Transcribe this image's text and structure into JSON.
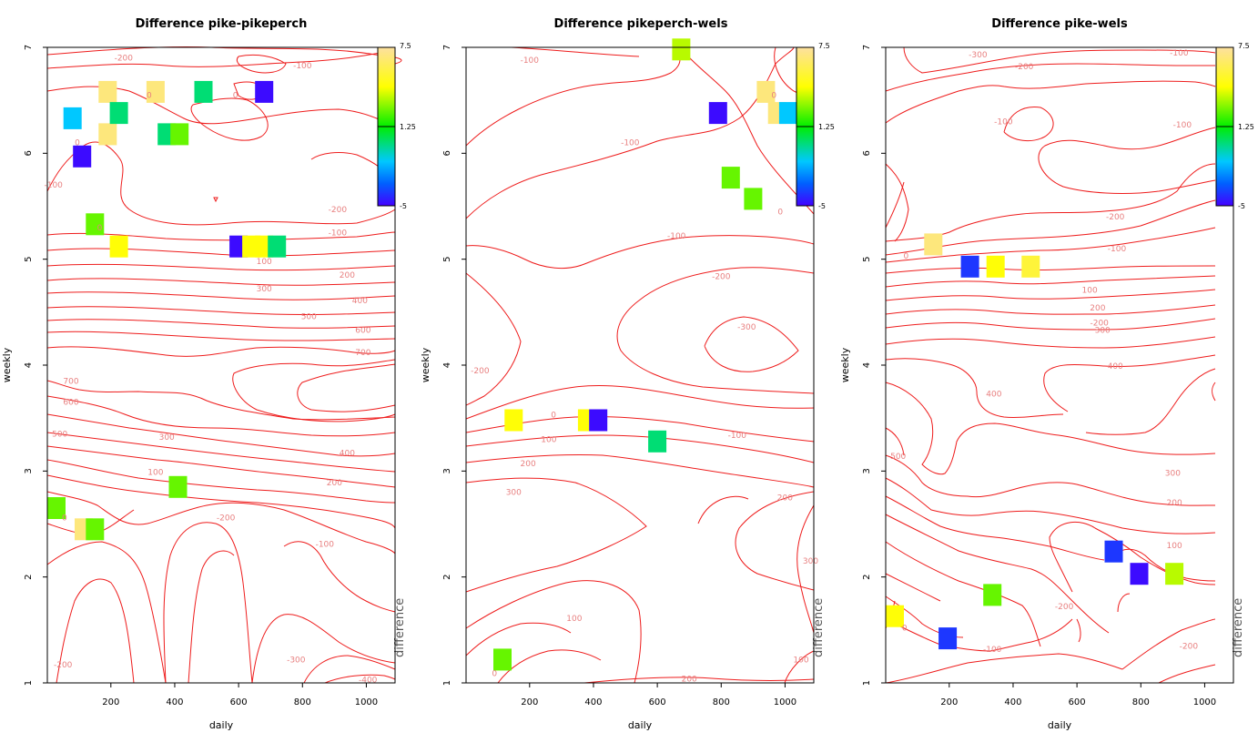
{
  "chart_data": [
    {
      "type": "heatmap",
      "title": "Difference pike-pikeperch",
      "xlabel": "daily",
      "ylabel": "weekly",
      "xlim": [
        1,
        1090
      ],
      "ylim": [
        1,
        7
      ],
      "xticks": [
        200,
        400,
        600,
        800,
        1000
      ],
      "yticks": [
        1,
        2,
        3,
        4,
        5,
        6,
        7
      ],
      "colorbar": {
        "label": "difference",
        "ticks": [
          7.5,
          1.25,
          -5
        ],
        "range": [
          -5,
          7.5
        ]
      },
      "cells": [
        {
          "x": 80,
          "y": 6.33,
          "value": -1.5
        },
        {
          "x": 110,
          "y": 5.97,
          "value": -4.8
        },
        {
          "x": 190,
          "y": 6.58,
          "value": 6.8
        },
        {
          "x": 190,
          "y": 6.18,
          "value": 6.8
        },
        {
          "x": 225,
          "y": 6.38,
          "value": 0.0
        },
        {
          "x": 340,
          "y": 6.58,
          "value": 6.8
        },
        {
          "x": 375,
          "y": 6.18,
          "value": 0.0
        },
        {
          "x": 415,
          "y": 6.18,
          "value": 2.5
        },
        {
          "x": 490,
          "y": 6.58,
          "value": 0.0
        },
        {
          "x": 680,
          "y": 6.58,
          "value": -4.8
        },
        {
          "x": 150,
          "y": 5.33,
          "value": 2.5
        },
        {
          "x": 225,
          "y": 5.12,
          "value": 4.5
        },
        {
          "x": 600,
          "y": 5.12,
          "value": -4.8
        },
        {
          "x": 640,
          "y": 5.12,
          "value": 4.5
        },
        {
          "x": 680,
          "y": 5.12,
          "value": 4.5
        },
        {
          "x": 720,
          "y": 5.12,
          "value": 0.0
        },
        {
          "x": 410,
          "y": 2.85,
          "value": 2.5
        },
        {
          "x": 5,
          "y": 2.65,
          "value": 2.5
        },
        {
          "x": 115,
          "y": 2.45,
          "value": 6.8
        },
        {
          "x": 150,
          "y": 2.45,
          "value": 2.5
        }
      ],
      "contour_labels": [
        {
          "text": "-200",
          "x": 240,
          "y": 6.9
        },
        {
          "text": "-100",
          "x": 800,
          "y": 6.83
        },
        {
          "text": "0",
          "x": 320,
          "y": 6.55
        },
        {
          "text": "0",
          "x": 590,
          "y": 6.55
        },
        {
          "text": "0",
          "x": 95,
          "y": 6.1
        },
        {
          "text": "-100",
          "x": 20,
          "y": 5.7
        },
        {
          "text": "0",
          "x": 165,
          "y": 5.3
        },
        {
          "text": "-200",
          "x": 910,
          "y": 5.47
        },
        {
          "text": "-100",
          "x": 910,
          "y": 5.25
        },
        {
          "text": "100",
          "x": 680,
          "y": 4.98
        },
        {
          "text": "200",
          "x": 940,
          "y": 4.85
        },
        {
          "text": "300",
          "x": 680,
          "y": 4.72
        },
        {
          "text": "400",
          "x": 980,
          "y": 4.61
        },
        {
          "text": "500",
          "x": 820,
          "y": 4.46
        },
        {
          "text": "600",
          "x": 990,
          "y": 4.33
        },
        {
          "text": "700",
          "x": 990,
          "y": 4.12
        },
        {
          "text": "700",
          "x": 75,
          "y": 3.85
        },
        {
          "text": "600",
          "x": 75,
          "y": 3.65
        },
        {
          "text": "500",
          "x": 40,
          "y": 3.35
        },
        {
          "text": "300",
          "x": 375,
          "y": 3.32
        },
        {
          "text": "400",
          "x": 940,
          "y": 3.17
        },
        {
          "text": "100",
          "x": 340,
          "y": 2.99
        },
        {
          "text": "200",
          "x": 900,
          "y": 2.89
        },
        {
          "text": "0",
          "x": 55,
          "y": 2.56
        },
        {
          "text": "-200",
          "x": 560,
          "y": 2.56
        },
        {
          "text": "-100",
          "x": 870,
          "y": 2.31
        },
        {
          "text": "-200",
          "x": 50,
          "y": 1.17
        },
        {
          "text": "-300",
          "x": 780,
          "y": 1.22
        },
        {
          "text": "-400",
          "x": 1005,
          "y": 1.03
        }
      ]
    },
    {
      "type": "heatmap",
      "title": "Difference pikeperch-wels",
      "xlabel": "daily",
      "ylabel": "weekly",
      "xlim": [
        1,
        1090
      ],
      "ylim": [
        1,
        7
      ],
      "xticks": [
        200,
        400,
        600,
        800,
        1000
      ],
      "yticks": [
        1,
        2,
        3,
        4,
        5,
        6,
        7
      ],
      "colorbar": {
        "label": "difference",
        "ticks": [
          7.5,
          1.25,
          -5
        ],
        "range": [
          -5,
          7.5
        ]
      },
      "cells": [
        {
          "x": 675,
          "y": 6.98,
          "value": 3.5
        },
        {
          "x": 940,
          "y": 6.58,
          "value": 6.8
        },
        {
          "x": 975,
          "y": 6.38,
          "value": 6.8
        },
        {
          "x": 1010,
          "y": 6.38,
          "value": -1.5
        },
        {
          "x": 790,
          "y": 6.38,
          "value": -4.8
        },
        {
          "x": 830,
          "y": 5.77,
          "value": 2.5
        },
        {
          "x": 900,
          "y": 5.57,
          "value": 2.5
        },
        {
          "x": 150,
          "y": 3.48,
          "value": 4.5
        },
        {
          "x": 380,
          "y": 3.48,
          "value": 4.5
        },
        {
          "x": 415,
          "y": 3.48,
          "value": -4.8
        },
        {
          "x": 600,
          "y": 3.28,
          "value": 0.0
        },
        {
          "x": 115,
          "y": 1.22,
          "value": 2.5
        }
      ],
      "contour_labels": [
        {
          "text": "-100",
          "x": 200,
          "y": 6.88
        },
        {
          "text": "0",
          "x": 965,
          "y": 6.55
        },
        {
          "text": "-100",
          "x": 515,
          "y": 6.1
        },
        {
          "text": "0",
          "x": 985,
          "y": 5.45
        },
        {
          "text": "-100",
          "x": 660,
          "y": 5.22
        },
        {
          "text": "-200",
          "x": 800,
          "y": 4.84
        },
        {
          "text": "-300",
          "x": 880,
          "y": 4.36
        },
        {
          "text": "-200",
          "x": 45,
          "y": 3.95
        },
        {
          "text": "0",
          "x": 275,
          "y": 3.53
        },
        {
          "text": "-100",
          "x": 850,
          "y": 3.34
        },
        {
          "text": "100",
          "x": 260,
          "y": 3.3
        },
        {
          "text": "200",
          "x": 195,
          "y": 3.07
        },
        {
          "text": "300",
          "x": 150,
          "y": 2.8
        },
        {
          "text": "200",
          "x": 1000,
          "y": 2.75
        },
        {
          "text": "300",
          "x": 1080,
          "y": 2.15
        },
        {
          "text": "100",
          "x": 340,
          "y": 1.61
        },
        {
          "text": "100",
          "x": 1050,
          "y": 1.22
        },
        {
          "text": "200",
          "x": 700,
          "y": 1.04
        },
        {
          "text": "0",
          "x": 90,
          "y": 1.09
        }
      ]
    },
    {
      "type": "heatmap",
      "title": "Difference pike-wels",
      "xlabel": "daily",
      "ylabel": "weekly",
      "xlim": [
        1,
        1090
      ],
      "ylim": [
        1,
        7
      ],
      "xticks": [
        200,
        400,
        600,
        800,
        1000
      ],
      "yticks": [
        1,
        2,
        3,
        4,
        5,
        6,
        7
      ],
      "colorbar": {
        "label": "difference",
        "ticks": [
          7.5,
          1.25,
          -5
        ],
        "range": [
          -5,
          7.5
        ]
      },
      "cells": [
        {
          "x": 150,
          "y": 5.14,
          "value": 6.8
        },
        {
          "x": 265,
          "y": 4.93,
          "value": -4.0
        },
        {
          "x": 345,
          "y": 4.93,
          "value": 4.5
        },
        {
          "x": 455,
          "y": 4.93,
          "value": 5.5
        },
        {
          "x": 715,
          "y": 2.24,
          "value": -4.0
        },
        {
          "x": 795,
          "y": 2.03,
          "value": -4.8
        },
        {
          "x": 905,
          "y": 2.03,
          "value": 3.5
        },
        {
          "x": 335,
          "y": 1.83,
          "value": 2.5
        },
        {
          "x": 5,
          "y": 1.63,
          "value": 4.5
        },
        {
          "x": 195,
          "y": 1.42,
          "value": -4.0
        }
      ],
      "contour_labels": [
        {
          "text": "-300",
          "x": 290,
          "y": 6.93
        },
        {
          "text": "-200",
          "x": 435,
          "y": 6.82
        },
        {
          "text": "-100",
          "x": 920,
          "y": 6.95
        },
        {
          "text": "-100",
          "x": 370,
          "y": 6.3
        },
        {
          "text": "-100",
          "x": 930,
          "y": 6.27
        },
        {
          "text": "-200",
          "x": 670,
          "y": 4.4
        },
        {
          "text": "-200",
          "x": 720,
          "y": 5.4
        },
        {
          "text": "-100",
          "x": 725,
          "y": 5.1
        },
        {
          "text": "0",
          "x": 65,
          "y": 5.03
        },
        {
          "text": "100",
          "x": 640,
          "y": 4.71
        },
        {
          "text": "200",
          "x": 665,
          "y": 4.54
        },
        {
          "text": "300",
          "x": 680,
          "y": 4.33
        },
        {
          "text": "400",
          "x": 720,
          "y": 3.99
        },
        {
          "text": "400",
          "x": 340,
          "y": 3.73
        },
        {
          "text": "500",
          "x": 40,
          "y": 3.14
        },
        {
          "text": "300",
          "x": 900,
          "y": 2.98
        },
        {
          "text": "200",
          "x": 905,
          "y": 2.7
        },
        {
          "text": "100",
          "x": 905,
          "y": 2.3
        },
        {
          "text": "-200",
          "x": 560,
          "y": 1.72
        },
        {
          "text": "0",
          "x": 60,
          "y": 1.52
        },
        {
          "text": "-100",
          "x": 335,
          "y": 1.32
        },
        {
          "text": "-200",
          "x": 950,
          "y": 1.35
        }
      ]
    }
  ]
}
